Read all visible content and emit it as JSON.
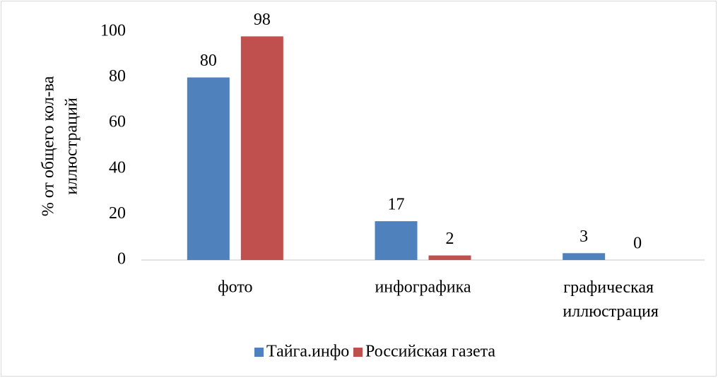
{
  "chart_data": {
    "type": "bar",
    "ylabel": [
      "% от общего кол-ва",
      "иллюстраций"
    ],
    "categories": [
      "фото",
      "инфографика",
      "графическая иллюстрация"
    ],
    "series": [
      {
        "name": "Тайга.инфо",
        "color": "#4f81bd",
        "values": [
          80,
          17,
          3
        ]
      },
      {
        "name": "Российская газета",
        "color": "#c0504d",
        "values": [
          98,
          2,
          0
        ]
      }
    ],
    "ylim": [
      0,
      100
    ],
    "yticks": [
      0,
      20,
      40,
      60,
      80,
      100
    ],
    "grid": false,
    "legend": "bottom"
  }
}
